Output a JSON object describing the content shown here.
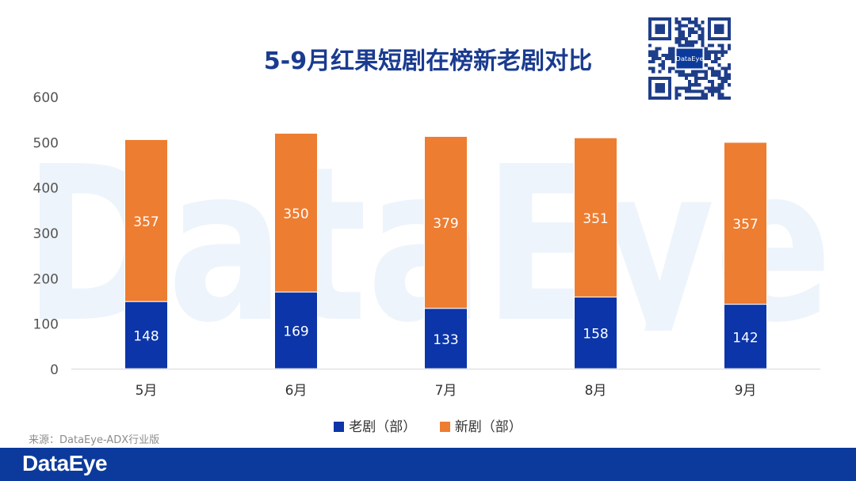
{
  "title": "5-9月红果短剧在榜新老剧对比",
  "watermark": "DataEye",
  "qr_logo": "DataEye",
  "source": "来源：DataEye-ADX行业版",
  "footer": {
    "logo": "DataEye"
  },
  "colors": {
    "old": "#0b35a8",
    "new": "#ed7d31",
    "title": "#1a3b8f",
    "footer": "#0b3a9c"
  },
  "chart_data": {
    "type": "bar",
    "stacked": true,
    "categories": [
      "5月",
      "6月",
      "7月",
      "8月",
      "9月"
    ],
    "series": [
      {
        "name": "老剧（部）",
        "values": [
          148,
          169,
          133,
          158,
          142
        ],
        "color": "#0b35a8"
      },
      {
        "name": "新剧（部）",
        "values": [
          357,
          350,
          379,
          351,
          357
        ],
        "color": "#ed7d31"
      }
    ],
    "ylim": [
      0,
      600
    ],
    "yticks": [
      0,
      100,
      200,
      300,
      400,
      500,
      600
    ],
    "grid": false,
    "legend": "bottom",
    "data_labels": true
  }
}
